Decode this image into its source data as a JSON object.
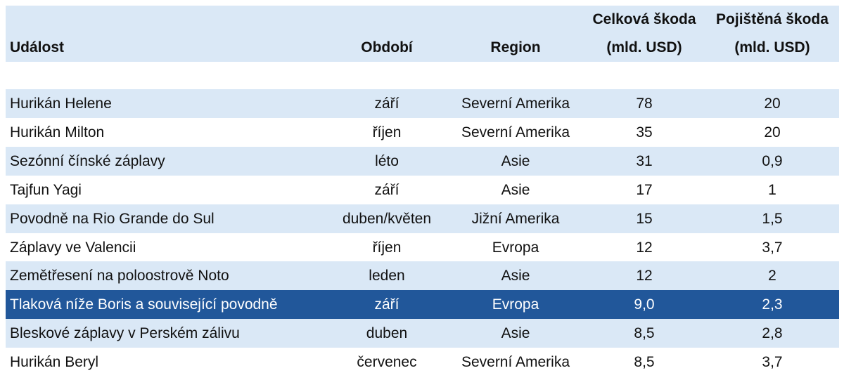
{
  "table": {
    "header": [
      [
        "Událost"
      ],
      [
        "Období"
      ],
      [
        "Region"
      ],
      [
        "Celková škoda",
        "(mld. USD)"
      ],
      [
        "Pojištěná škoda",
        "(mld. USD)"
      ]
    ],
    "rows": [
      [
        "Hurikán Helene",
        "září",
        "Severní Amerika",
        "78",
        "20"
      ],
      [
        "Hurikán Milton",
        "říjen",
        "Severní Amerika",
        "35",
        "20"
      ],
      [
        "Sezónní čínské záplavy",
        "léto",
        "Asie",
        "31",
        "0,9"
      ],
      [
        "Tajfun Yagi",
        "září",
        "Asie",
        "17",
        "1"
      ],
      [
        "Povodně na Rio Grande do Sul",
        "duben/květen",
        "Jižní Amerika",
        "15",
        "1,5"
      ],
      [
        "Záplavy ve Valencii",
        "říjen",
        "Evropa",
        "12",
        "3,7"
      ],
      [
        "Zemětřesení na poloostrově Noto",
        "leden",
        "Asie",
        "12",
        "2"
      ],
      [
        "Tlaková níže Boris a související povodně",
        "září",
        "Evropa",
        "9,0",
        "2,3"
      ],
      [
        "Bleskové záplavy v Perském zálivu",
        "duben",
        "Asie",
        "8,5",
        "2,8"
      ],
      [
        "Hurikán Beryl",
        "červenec",
        "Severní Amerika",
        "8,5",
        "3,7"
      ]
    ],
    "highlight_row": 7
  }
}
